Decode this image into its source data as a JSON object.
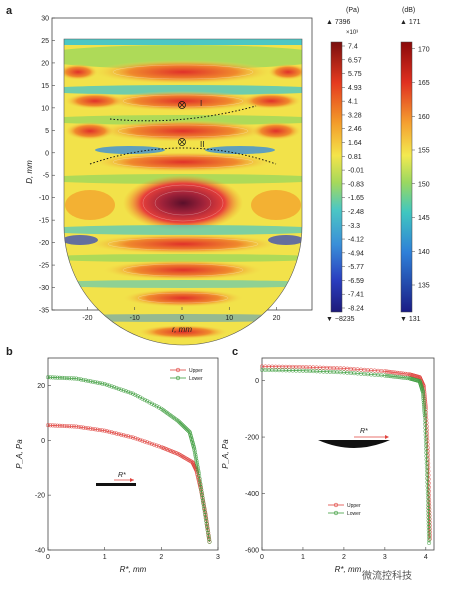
{
  "panel_a": {
    "label": "a",
    "xlabel": "r, mm",
    "ylabel": "D, mm",
    "x_ticks": [
      "-20",
      "-10",
      "0",
      "10",
      "20"
    ],
    "y_ticks": [
      "-35",
      "-30",
      "-25",
      "-20",
      "-15",
      "-10",
      "-5",
      "0",
      "5",
      "10",
      "15",
      "20",
      "25",
      "30"
    ],
    "markers": [
      "I",
      "II"
    ],
    "pa_bar": {
      "unit": "(Pa)",
      "max": "▲ 7396",
      "scale": "×10³",
      "ticks": [
        "7.4",
        "6.57",
        "5.75",
        "4.93",
        "4.1",
        "3.28",
        "2.46",
        "1.64",
        "0.81",
        "-0.01",
        "-0.83",
        "-1.65",
        "-2.48",
        "-3.3",
        "-4.12",
        "-4.94",
        "-5.77",
        "-6.59",
        "-7.41",
        "-8.24"
      ],
      "min": "▼ −8235"
    },
    "db_bar": {
      "unit": "(dB)",
      "max": "▲ 171",
      "ticks": [
        "170",
        "165",
        "160",
        "155",
        "150",
        "145",
        "140",
        "135"
      ],
      "min": "▼ 131"
    }
  },
  "chart_data": [
    {
      "type": "line",
      "panel": "b",
      "xlabel": "R*, mm",
      "ylabel": "P_A, Pa",
      "xlim": [
        0,
        3
      ],
      "ylim": [
        -40,
        30
      ],
      "x_ticks": [
        "0",
        "1",
        "2",
        "3"
      ],
      "y_ticks": [
        "20",
        "0",
        "-20",
        "-40"
      ],
      "inset_label": "R*",
      "series": [
        {
          "name": "Upper",
          "color": "#e0443f",
          "points": [
            [
              0,
              5.5
            ],
            [
              0.5,
              5
            ],
            [
              1,
              3.5
            ],
            [
              1.5,
              1
            ],
            [
              2,
              -2.5
            ],
            [
              2.3,
              -5
            ],
            [
              2.55,
              -8
            ],
            [
              2.62,
              -11
            ],
            [
              2.7,
              -18
            ],
            [
              2.78,
              -27
            ],
            [
              2.85,
              -37
            ]
          ]
        },
        {
          "name": "Lower",
          "color": "#3f9e3f",
          "points": [
            [
              0,
              23
            ],
            [
              0.5,
              22.5
            ],
            [
              1,
              20.5
            ],
            [
              1.5,
              17
            ],
            [
              2,
              11.5
            ],
            [
              2.3,
              7
            ],
            [
              2.5,
              3
            ],
            [
              2.58,
              -3
            ],
            [
              2.66,
              -12
            ],
            [
              2.75,
              -24
            ],
            [
              2.85,
              -37
            ]
          ]
        }
      ]
    },
    {
      "type": "line",
      "panel": "c",
      "xlabel": "R*, mm",
      "ylabel": "P_A, Pa",
      "xlim": [
        0,
        4.2
      ],
      "ylim": [
        -600,
        80
      ],
      "x_ticks": [
        "0",
        "1",
        "2",
        "3",
        "4"
      ],
      "y_ticks": [
        "0",
        "-200",
        "-400",
        "-600"
      ],
      "inset_label": "R*",
      "series": [
        {
          "name": "Upper",
          "color": "#e0443f",
          "points": [
            [
              0,
              50
            ],
            [
              1,
              48
            ],
            [
              2,
              43
            ],
            [
              3,
              33
            ],
            [
              3.6,
              22
            ],
            [
              3.85,
              12
            ],
            [
              3.95,
              -20
            ],
            [
              4.0,
              -100
            ],
            [
              4.05,
              -250
            ],
            [
              4.08,
              -420
            ],
            [
              4.1,
              -560
            ]
          ]
        },
        {
          "name": "Lower",
          "color": "#3f9e3f",
          "points": [
            [
              0,
              38
            ],
            [
              1,
              35
            ],
            [
              2,
              29
            ],
            [
              3,
              18
            ],
            [
              3.6,
              8
            ],
            [
              3.85,
              -2
            ],
            [
              3.93,
              -40
            ],
            [
              3.98,
              -130
            ],
            [
              4.02,
              -280
            ],
            [
              4.06,
              -440
            ],
            [
              4.08,
              -575
            ]
          ]
        }
      ]
    }
  ],
  "watermark": "微流控科技"
}
